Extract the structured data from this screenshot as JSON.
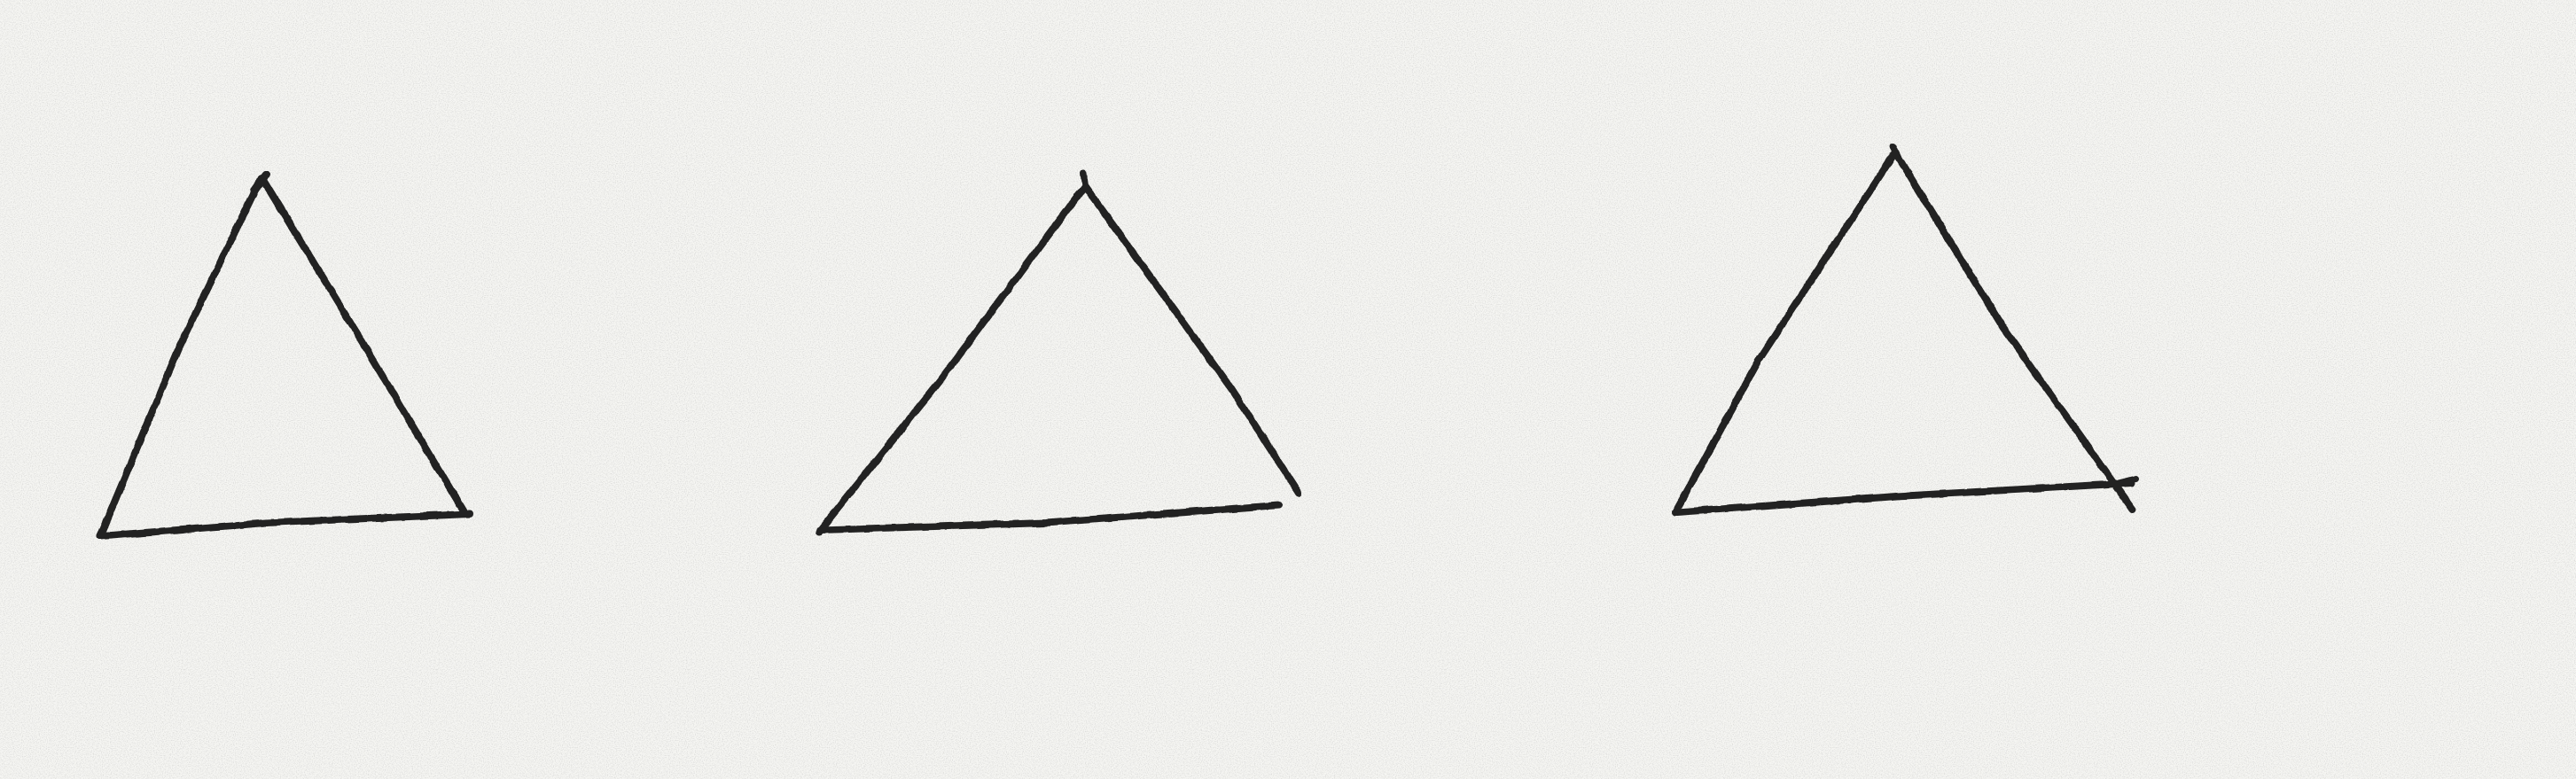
{
  "page": {
    "description_text": ""
  },
  "sketch": {
    "shape_count": 3,
    "shapes": [
      {
        "shape": "triangle-icon"
      },
      {
        "shape": "triangle-icon"
      },
      {
        "shape": "triangle-icon"
      }
    ],
    "colors": {
      "paper": "#f6f6f3",
      "ink": "#222222"
    }
  }
}
